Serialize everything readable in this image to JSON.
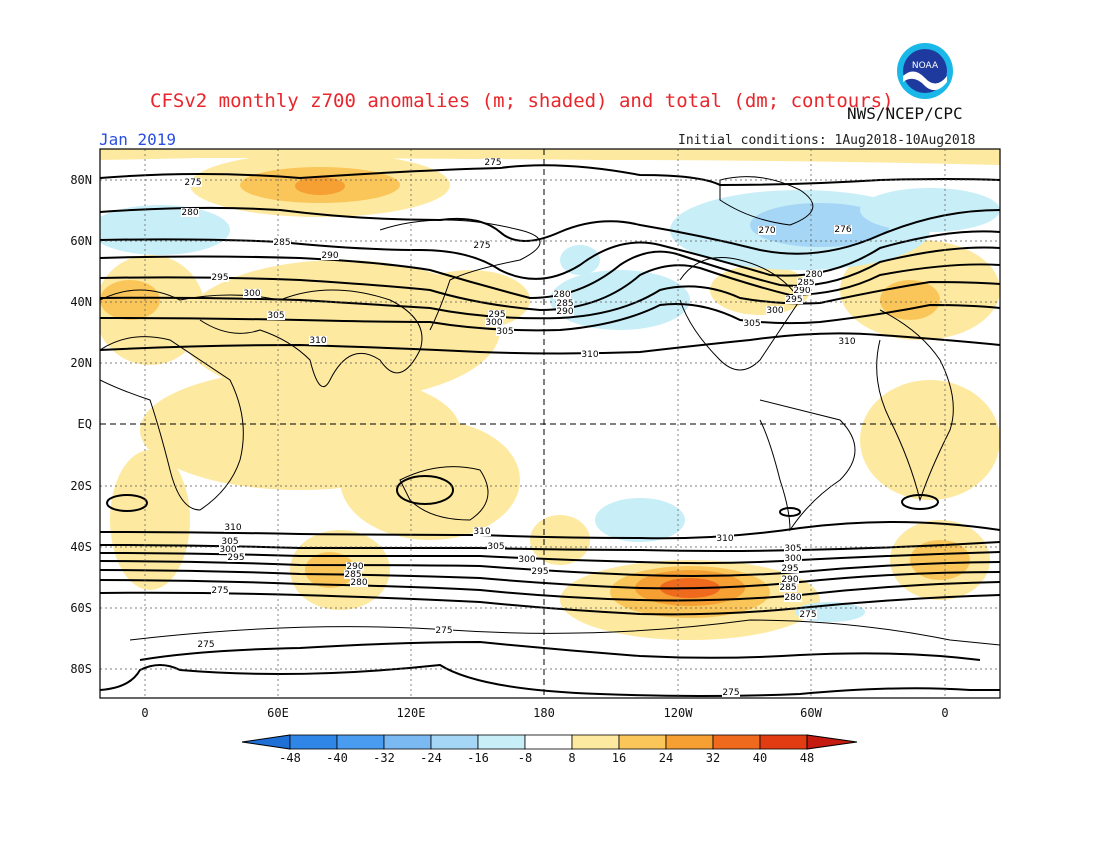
{
  "header": {
    "title": "CFSv2 monthly z700 anomalies (m; shaded) and total (dm; contours)",
    "agency": "NWS/NCEP/CPC",
    "period": "Jan 2019",
    "initial_conditions": "Initial conditions: 1Aug2018-10Aug2018"
  },
  "logo": {
    "text": "NOAA",
    "icon": "noaa-logo-icon"
  },
  "axes": {
    "lat_labels": [
      "80N",
      "60N",
      "40N",
      "20N",
      "EQ",
      "20S",
      "40S",
      "60S",
      "80S"
    ],
    "lon_labels": [
      "0",
      "60E",
      "120E",
      "180",
      "120W",
      "60W",
      "0"
    ]
  },
  "contour_labels": [
    "275",
    "280",
    "285",
    "290",
    "295",
    "300",
    "305",
    "310"
  ],
  "colorbar": {
    "labels": [
      "-48",
      "-40",
      "-32",
      "-24",
      "-16",
      "-8",
      "8",
      "16",
      "24",
      "32",
      "40",
      "48"
    ],
    "colors": [
      "#1e6fd6",
      "#2f86e6",
      "#4a9cf0",
      "#7ab9f2",
      "#a5d6f5",
      "#c8eef8",
      "#ffffff",
      "#fde9a0",
      "#fbc659",
      "#f6a033",
      "#f06a1e",
      "#e23c12",
      "#c51a10"
    ]
  },
  "colors": {
    "title": "#e8262c",
    "period": "#2a4fe0",
    "contour": "#000000"
  }
}
